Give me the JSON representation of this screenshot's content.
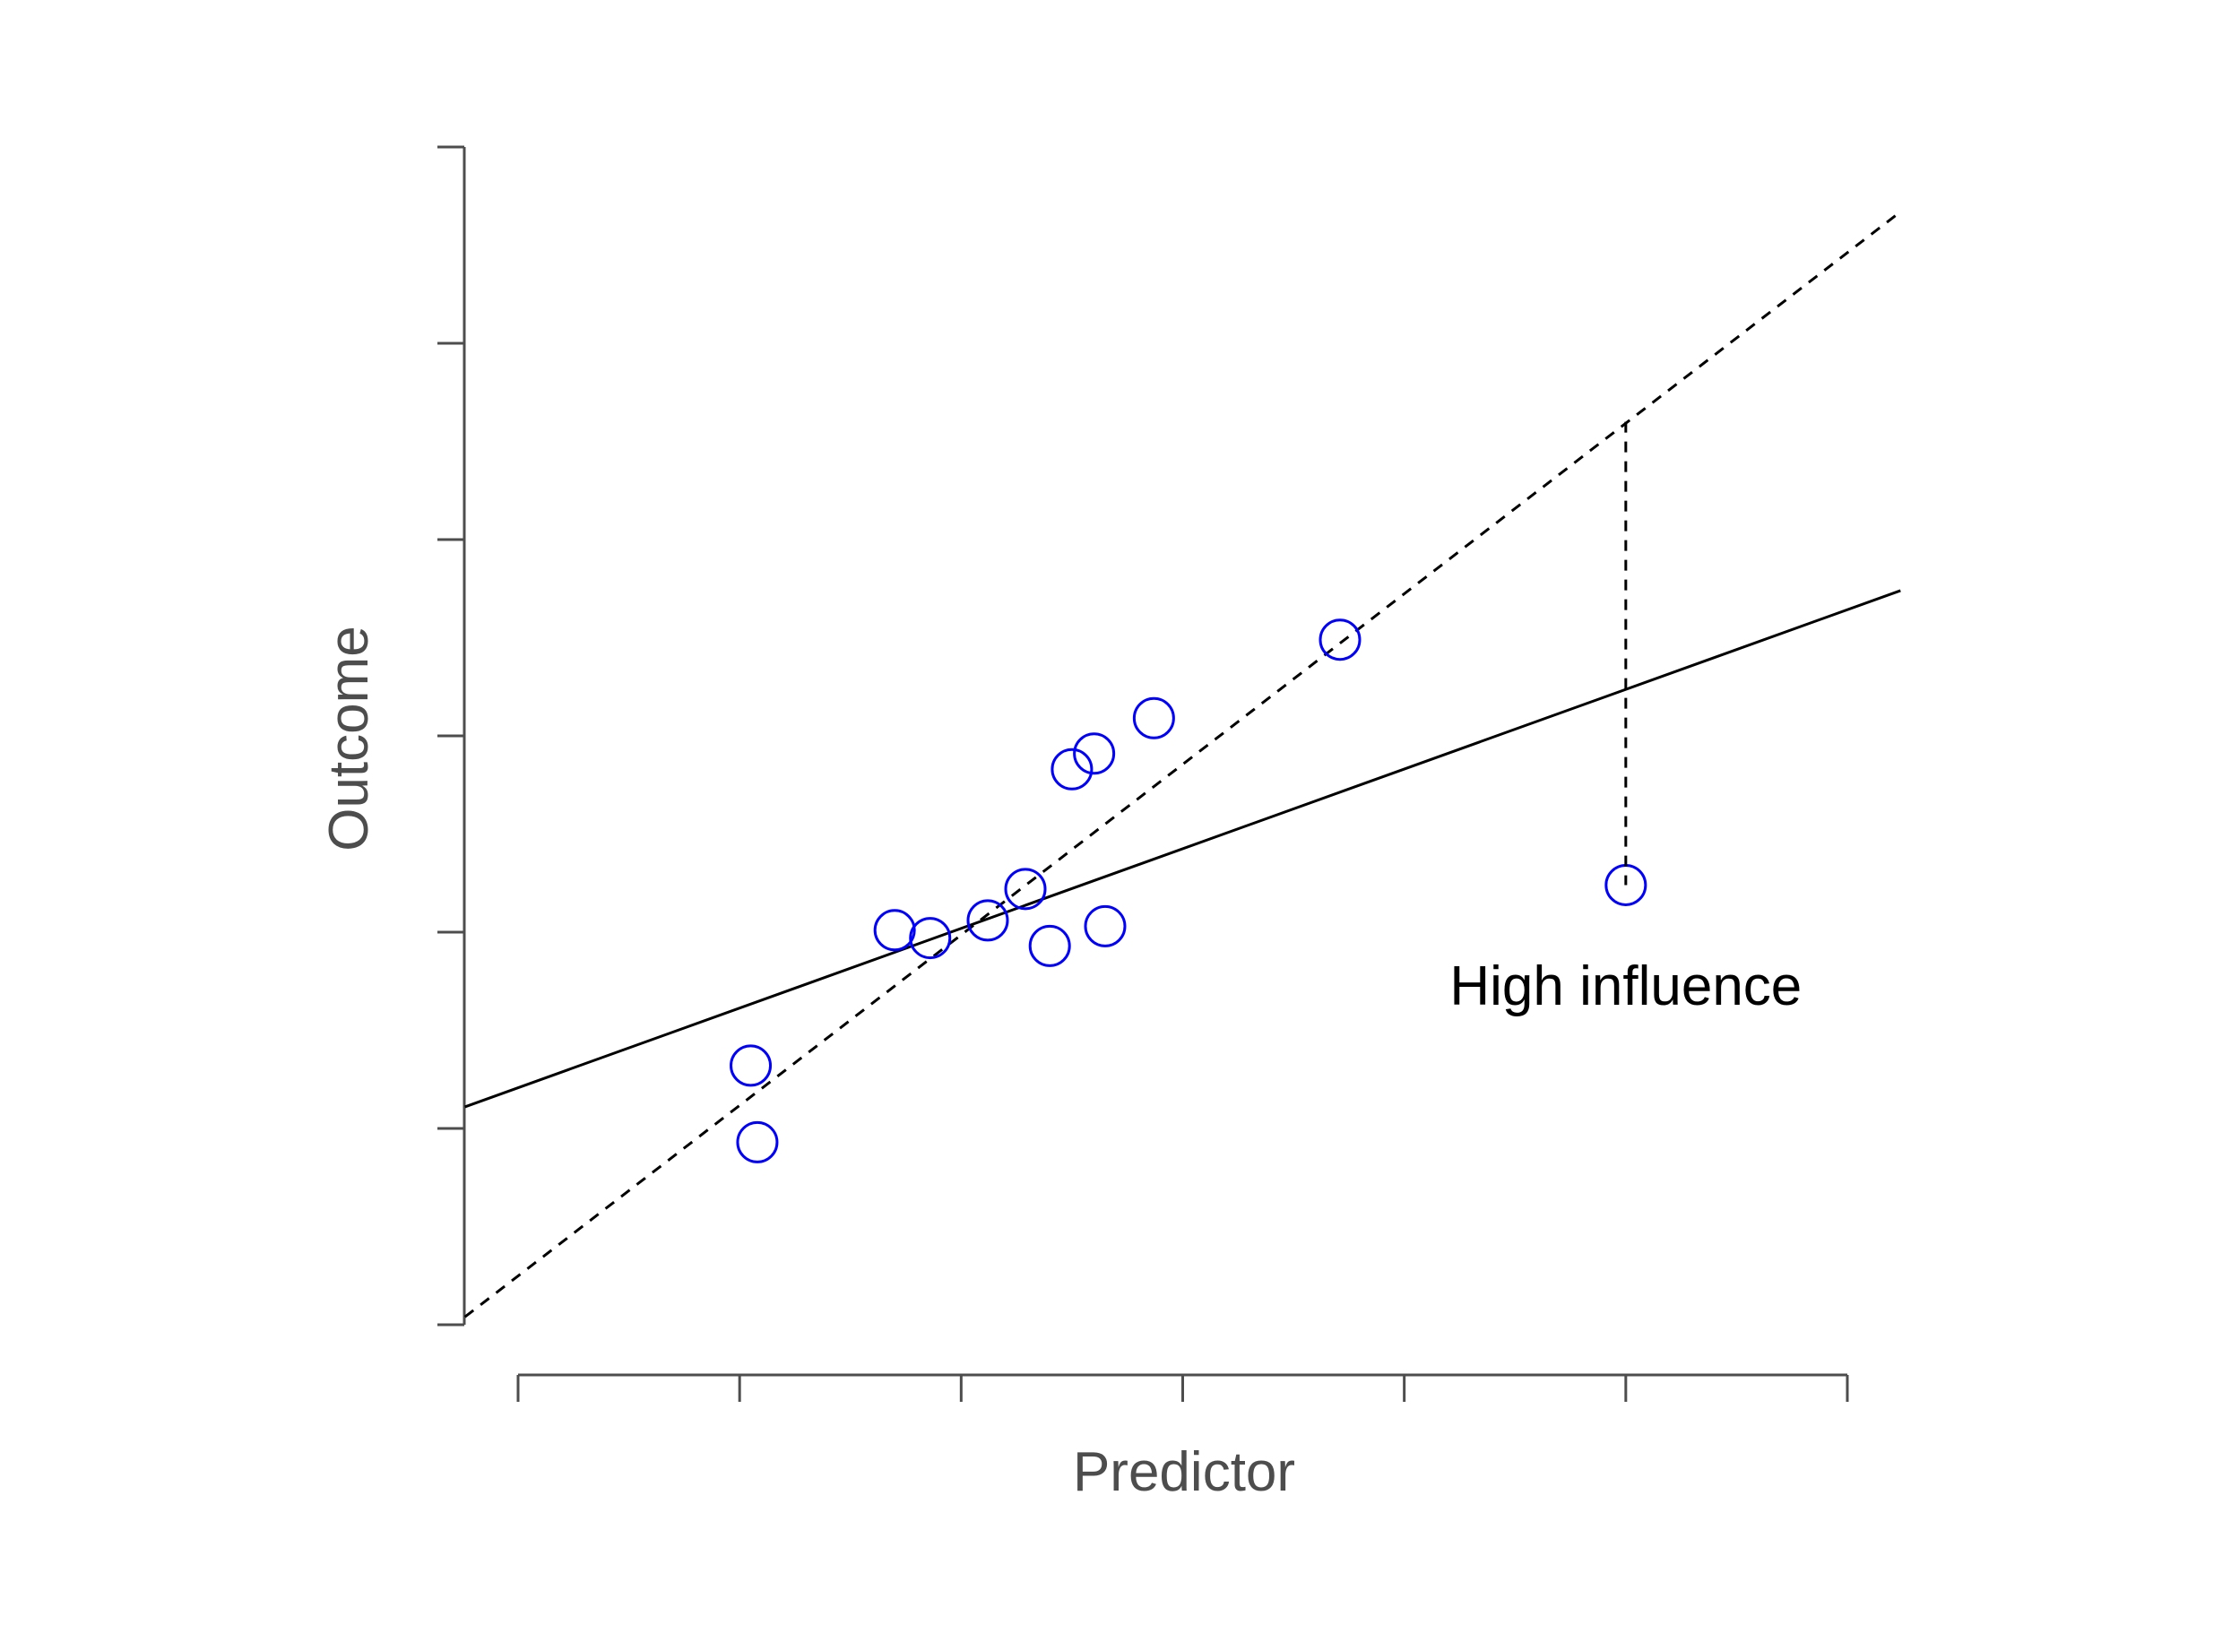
{
  "chart_data": {
    "type": "scatter",
    "title": "",
    "xlabel": "Predictor",
    "ylabel": "Outcome",
    "xlim": [
      0,
      6
    ],
    "ylim": [
      0,
      6
    ],
    "x_ticks": [
      0,
      1,
      2,
      3,
      4,
      5,
      6
    ],
    "y_ticks": [
      0,
      1,
      2,
      3,
      4,
      5,
      6
    ],
    "tick_labels_shown": false,
    "grid": false,
    "legend": "none",
    "point_color": "#0000ff",
    "line_color": "#000000",
    "points": [
      {
        "x": 1.05,
        "y": 1.32
      },
      {
        "x": 1.08,
        "y": 0.93
      },
      {
        "x": 1.7,
        "y": 2.01
      },
      {
        "x": 1.86,
        "y": 1.97
      },
      {
        "x": 2.12,
        "y": 2.06
      },
      {
        "x": 2.29,
        "y": 2.22
      },
      {
        "x": 2.4,
        "y": 1.93
      },
      {
        "x": 2.5,
        "y": 2.83
      },
      {
        "x": 2.6,
        "y": 2.91
      },
      {
        "x": 2.65,
        "y": 2.03
      },
      {
        "x": 2.87,
        "y": 3.09
      },
      {
        "x": 3.71,
        "y": 3.49
      },
      {
        "x": 5.0,
        "y": 2.24
      }
    ],
    "fit_all": {
      "style": "solid",
      "x": [
        -0.24,
        6.24
      ],
      "y": [
        1.11,
        3.74
      ]
    },
    "fit_without_influential": {
      "style": "dashed",
      "x": [
        -0.24,
        6.24
      ],
      "y": [
        0.04,
        5.67
      ]
    },
    "residual_segment": {
      "style": "dashed",
      "x": 5.0,
      "y_from": 4.6,
      "y_to": 2.24
    },
    "annotations": [
      {
        "text": "High influence",
        "x": 5.0,
        "y": 1.63
      }
    ]
  }
}
